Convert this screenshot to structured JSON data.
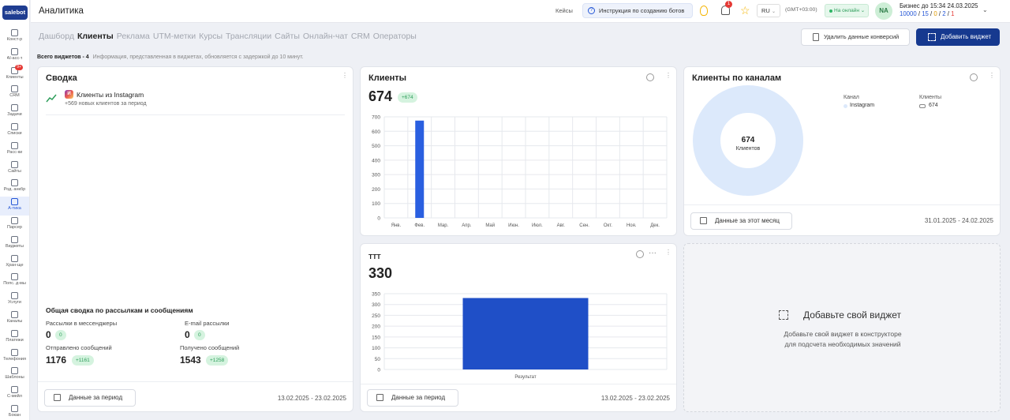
{
  "sidebar": {
    "logo": "salebot",
    "items": [
      {
        "label": "Конст-р"
      },
      {
        "label": "AI-асс-т"
      },
      {
        "label": "Клиенты",
        "badge": "9+"
      },
      {
        "label": "CRM"
      },
      {
        "label": "Задачи"
      },
      {
        "label": "Списки"
      },
      {
        "label": "Расс-ки"
      },
      {
        "label": "Сайты"
      },
      {
        "label": "Род. анкбр"
      },
      {
        "label": "А-тика",
        "active": true
      },
      {
        "label": "Парсер"
      },
      {
        "label": "Виджеты"
      },
      {
        "label": "Хран-ще"
      },
      {
        "label": "Попс. д-мы"
      },
      {
        "label": "Услуги"
      },
      {
        "label": "Каналы"
      },
      {
        "label": "Платежи"
      },
      {
        "label": "Телефония"
      },
      {
        "label": "Шаблоны"
      },
      {
        "label": "С-мейл"
      },
      {
        "label": "Бокан"
      }
    ]
  },
  "topbar": {
    "title": "Аналитика",
    "cases": "Кейсы",
    "instruction": "Инструкция по созданию ботов",
    "notifications_count": "1",
    "language": "RU",
    "timezone": "(GMT+03:00)",
    "status": "На онлайн",
    "avatar": "NA",
    "business_line": "Бизнес до 15:34 24.03.2025",
    "stats": {
      "a": "10000",
      "b": "15",
      "c": "0",
      "d": "2",
      "e": "1"
    }
  },
  "tabs": [
    "Дашборд",
    "Клиенты",
    "Реклама",
    "UTM-метки",
    "Курсы",
    "Трансляции",
    "Сайты",
    "Онлайн-чат",
    "CRM",
    "Операторы"
  ],
  "active_tab": 1,
  "actions": {
    "delete_conversions": "Удалить данные конверсий",
    "add_widget": "Добавить виджет"
  },
  "info": {
    "count_label": "Всего виджетов - 4",
    "note": "Информация, представленная в виджетах, обновляется с задержкой до 10 минут."
  },
  "summary": {
    "title": "Сводка",
    "instagram_title": "Клиенты из Instagram",
    "instagram_sub": "+569 новых клиентов за период",
    "mail_title": "Общая сводка по рассылкам и сообщениям",
    "messenger_label": "Рассылки в мессенджеры",
    "messenger_value": "0",
    "messenger_delta": "0",
    "email_label": "E-mail рассылки",
    "email_value": "0",
    "email_delta": "0",
    "sent_label": "Отправлено сообщений",
    "sent_value": "1176",
    "sent_delta": "+1161",
    "received_label": "Получено сообщений",
    "received_value": "1543",
    "received_delta": "+1258",
    "period_button": "Данные за период",
    "period_range": "13.02.2025 - 23.02.2025"
  },
  "clients": {
    "title": "Клиенты",
    "total": "674",
    "delta": "+674",
    "period_button": "Данные за период",
    "period_range": "13.02.2025 - 23.02.2025"
  },
  "channels": {
    "title": "Клиенты по каналам",
    "col_channel": "Канал",
    "col_clients": "Клиенты",
    "channel_name": "Instagram",
    "channel_value": "674",
    "center_value": "674",
    "center_label": "Клиентов",
    "period_button": "Данные за этот месяц",
    "period_range": "31.01.2025 - 24.02.2025"
  },
  "ttt": {
    "title": "ТТТ",
    "total": "330",
    "period_button": "Данные за период",
    "period_range": "13.02.2025 - 23.02.2025"
  },
  "add_widget_card": {
    "title": "Добавьте свой виджет",
    "line1": "Добавьте свой виджет в конструкторе",
    "line2": "для подсчета необходимых значений"
  },
  "chart_data": [
    {
      "type": "bar",
      "categories": [
        "Янв.",
        "Фев.",
        "Мар.",
        "Апр.",
        "Май",
        "Июн.",
        "Июл.",
        "Авг.",
        "Сен.",
        "Окт.",
        "Ноя.",
        "Дек."
      ],
      "values": [
        0,
        674,
        0,
        0,
        0,
        0,
        0,
        0,
        0,
        0,
        0,
        0
      ],
      "ylim": [
        0,
        700
      ],
      "yticks": [
        0,
        100,
        200,
        300,
        400,
        500,
        600,
        700
      ],
      "grid": true,
      "color": "#2a5fe0"
    },
    {
      "type": "bar",
      "categories": [
        "Результат"
      ],
      "values": [
        330
      ],
      "ylim": [
        0,
        350
      ],
      "yticks": [
        0,
        50,
        100,
        150,
        200,
        250,
        300,
        350
      ],
      "grid": true,
      "color": "#1f4fc7"
    },
    {
      "type": "pie",
      "categories": [
        "Instagram"
      ],
      "values": [
        674
      ],
      "color": "#dce9fb"
    }
  ]
}
